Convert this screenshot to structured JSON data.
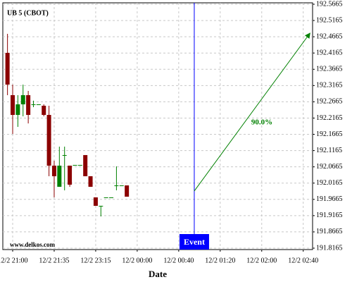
{
  "chart_data": {
    "type": "candlestick",
    "title": "UB 5 (CBOT)",
    "watermark": "www.delkos.com",
    "x_label": "Date",
    "x": [
      0,
      1,
      2,
      3,
      4,
      5,
      6,
      7,
      8,
      9,
      10,
      11,
      12,
      13,
      14,
      15,
      16,
      17,
      18,
      19,
      20,
      21,
      22,
      23
    ],
    "open": [
      192.417,
      192.2869,
      192.2262,
      192.2587,
      192.2869,
      192.2587,
      192.2587,
      192.2544,
      192.2262,
      192.0702,
      192.0052,
      192.1027,
      192.0702,
      192.0724,
      192.0724,
      192.1027,
      192.0377,
      191.9727,
      191.9467,
      191.9727,
      191.9727,
      192.0095,
      192.0095,
      192.0095
    ],
    "high": [
      192.4755,
      192.3194,
      192.2869,
      192.3194,
      192.3,
      192.27,
      192.2587,
      192.2587,
      192.2544,
      192.0854,
      192.1287,
      192.1287,
      192.0702,
      192.0724,
      192.0724,
      192.1027,
      192.0377,
      191.9727,
      191.9467,
      191.9727,
      191.9727,
      192.068,
      192.0095,
      192.0095
    ],
    "low": [
      192.2869,
      192.1677,
      192.1894,
      192.2219,
      192.2,
      192.25,
      192.2587,
      192.2219,
      192.0377,
      191.9727,
      192.0052,
      191.9943,
      192.0052,
      192.0724,
      192.0724,
      192.0377,
      192.0052,
      191.9467,
      191.9141,
      191.9727,
      191.9727,
      191.9943,
      192.0095,
      191.9748
    ],
    "close": [
      192.3194,
      192.2262,
      192.2587,
      192.2869,
      192.2262,
      192.2587,
      192.2587,
      192.2262,
      192.0702,
      192.0377,
      192.0702,
      192.1027,
      192.0117,
      192.0724,
      192.0724,
      192.0377,
      192.0052,
      191.9467,
      191.9467,
      191.9727,
      191.9727,
      192.0095,
      192.0095,
      191.9748
    ],
    "up_color": "#008000",
    "down_color": "#8b0000",
    "xlim": [
      -0.9,
      58.8
    ],
    "xticks": [
      {
        "value": 1,
        "label": "12/2 21:00"
      },
      {
        "value": 9,
        "label": "12/2 21:35"
      },
      {
        "value": 17,
        "label": "12/2 23:15"
      },
      {
        "value": 25,
        "label": "12/2 00:00"
      },
      {
        "value": 33,
        "label": "12/2 00:40"
      },
      {
        "value": 41,
        "label": "12/2 01:20"
      },
      {
        "value": 49,
        "label": "12/2 02:00"
      },
      {
        "value": 57,
        "label": "12/2 02:40"
      }
    ],
    "ylim": [
      191.8165,
      192.5665
    ],
    "yticks": [
      191.8165,
      191.8665,
      191.9165,
      191.9665,
      192.0165,
      192.0665,
      192.1165,
      192.1665,
      192.2165,
      192.2665,
      192.3165,
      192.3665,
      192.4165,
      192.4665,
      192.5165,
      192.5665
    ],
    "grid": true,
    "event": {
      "x": 36,
      "label": "Event",
      "color": "#0000ff"
    },
    "arrow": {
      "x": [
        36,
        58.3
      ],
      "y": [
        191.9922,
        192.4776
      ],
      "label": "90.0%",
      "color": "#008000"
    }
  }
}
